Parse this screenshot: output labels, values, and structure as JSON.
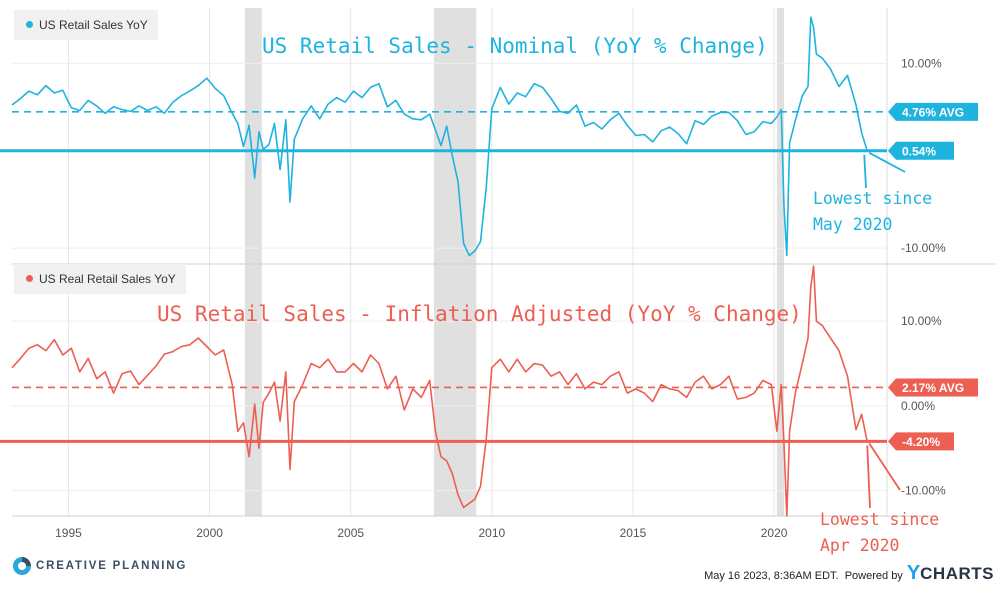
{
  "chart_data": [
    {
      "type": "line",
      "title": "US Retail Sales - Nominal (YoY % Change)",
      "legend": "US Retail Sales YoY",
      "color": "#1fb3df",
      "ylim": [
        -11.5,
        16
      ],
      "y_ticks": [
        {
          "value": 10,
          "label": "10.00%"
        },
        {
          "value": -10,
          "label": "-10.00%"
        }
      ],
      "avg": {
        "value": 4.76,
        "label": "4.76% AVG"
      },
      "current": {
        "value": 0.54,
        "label": "0.54%"
      },
      "note": [
        "Lowest since",
        "May 2020"
      ],
      "x": [
        1993.0,
        1993.3,
        1993.6,
        1993.9,
        1994.2,
        1994.5,
        1994.8,
        1995.1,
        1995.4,
        1995.7,
        1996.0,
        1996.3,
        1996.6,
        1996.9,
        1997.2,
        1997.5,
        1997.8,
        1998.1,
        1998.4,
        1998.7,
        1999.0,
        1999.3,
        1999.6,
        1999.9,
        2000.2,
        2000.5,
        2000.8,
        2001.0,
        2001.2,
        2001.4,
        2001.6,
        2001.75,
        2001.9,
        2002.1,
        2002.3,
        2002.5,
        2002.7,
        2002.85,
        2003.0,
        2003.3,
        2003.6,
        2003.9,
        2004.2,
        2004.5,
        2004.8,
        2005.1,
        2005.4,
        2005.7,
        2006.0,
        2006.3,
        2006.6,
        2006.9,
        2007.2,
        2007.5,
        2007.8,
        2008.0,
        2008.2,
        2008.4,
        2008.6,
        2008.8,
        2009.0,
        2009.2,
        2009.4,
        2009.6,
        2009.8,
        2010.0,
        2010.3,
        2010.6,
        2010.9,
        2011.2,
        2011.5,
        2011.8,
        2012.1,
        2012.4,
        2012.7,
        2013.0,
        2013.3,
        2013.6,
        2013.9,
        2014.2,
        2014.5,
        2014.8,
        2015.1,
        2015.4,
        2015.7,
        2016.0,
        2016.3,
        2016.6,
        2016.9,
        2017.2,
        2017.5,
        2017.8,
        2018.1,
        2018.4,
        2018.7,
        2019.0,
        2019.3,
        2019.6,
        2019.9,
        2020.1,
        2020.25,
        2020.35,
        2020.45,
        2020.55,
        2020.75,
        2021.0,
        2021.2,
        2021.3,
        2021.4,
        2021.5,
        2021.7,
        2022.0,
        2022.3,
        2022.6,
        2022.9,
        2023.1,
        2023.3
      ],
      "values": [
        5.5,
        6.2,
        7.0,
        6.6,
        7.6,
        6.8,
        7.1,
        5.2,
        4.9,
        6.0,
        5.4,
        4.6,
        5.3,
        5.0,
        4.8,
        5.4,
        4.9,
        5.3,
        4.6,
        5.8,
        6.5,
        7.0,
        7.6,
        8.4,
        7.3,
        6.5,
        4.6,
        3.5,
        1.0,
        3.3,
        -2.4,
        2.6,
        0.7,
        1.2,
        3.5,
        -1.5,
        3.9,
        -5.0,
        1.8,
        4.0,
        5.4,
        4.0,
        5.6,
        6.3,
        5.8,
        7.0,
        6.3,
        7.4,
        7.8,
        5.3,
        6.0,
        4.5,
        4.0,
        3.9,
        4.5,
        2.8,
        1.1,
        3.2,
        0.0,
        -2.8,
        -9.5,
        -10.8,
        -10.3,
        -9.3,
        -3.5,
        5.1,
        7.4,
        5.6,
        6.8,
        6.4,
        7.8,
        7.4,
        6.2,
        4.8,
        4.6,
        5.5,
        3.2,
        3.6,
        2.9,
        3.9,
        4.6,
        3.3,
        2.2,
        2.3,
        1.5,
        2.7,
        3.1,
        2.4,
        1.3,
        3.8,
        3.4,
        4.3,
        4.7,
        4.7,
        3.8,
        2.3,
        2.6,
        3.7,
        3.5,
        4.2,
        5.0,
        -5.5,
        -10.8,
        1.4,
        3.8,
        6.5,
        7.5,
        15.0,
        13.9,
        11.0,
        10.6,
        9.4,
        7.5,
        8.7,
        5.5,
        2.5,
        0.54
      ]
    },
    {
      "type": "line",
      "title": "US Retail Sales - Inflation Adjusted (YoY % Change)",
      "legend": "US Real Retail Sales YoY",
      "color": "#ec5f52",
      "ylim": [
        -13,
        16.5
      ],
      "y_ticks": [
        {
          "value": 10,
          "label": "10.00%"
        },
        {
          "value": 0,
          "label": "0.00%"
        },
        {
          "value": -10,
          "label": "-10.00%"
        }
      ],
      "avg": {
        "value": 2.17,
        "label": "2.17% AVG"
      },
      "current": {
        "value": -4.2,
        "label": "-4.20%"
      },
      "note": [
        "Lowest since",
        "Apr 2020"
      ],
      "x": [
        1993.0,
        1993.3,
        1993.6,
        1993.9,
        1994.2,
        1994.5,
        1994.8,
        1995.1,
        1995.4,
        1995.7,
        1996.0,
        1996.3,
        1996.6,
        1996.9,
        1997.2,
        1997.5,
        1997.8,
        1998.1,
        1998.4,
        1998.7,
        1999.0,
        1999.3,
        1999.6,
        1999.9,
        2000.2,
        2000.5,
        2000.8,
        2001.0,
        2001.2,
        2001.4,
        2001.6,
        2001.75,
        2001.9,
        2002.1,
        2002.3,
        2002.5,
        2002.7,
        2002.85,
        2003.0,
        2003.3,
        2003.6,
        2003.9,
        2004.2,
        2004.5,
        2004.8,
        2005.1,
        2005.4,
        2005.7,
        2006.0,
        2006.3,
        2006.6,
        2006.9,
        2007.2,
        2007.5,
        2007.8,
        2008.0,
        2008.2,
        2008.4,
        2008.6,
        2008.8,
        2009.0,
        2009.2,
        2009.4,
        2009.6,
        2009.8,
        2010.0,
        2010.3,
        2010.6,
        2010.9,
        2011.2,
        2011.5,
        2011.8,
        2012.1,
        2012.4,
        2012.7,
        2013.0,
        2013.3,
        2013.6,
        2013.9,
        2014.2,
        2014.5,
        2014.8,
        2015.1,
        2015.4,
        2015.7,
        2016.0,
        2016.3,
        2016.6,
        2016.9,
        2017.2,
        2017.5,
        2017.8,
        2018.1,
        2018.4,
        2018.7,
        2019.0,
        2019.3,
        2019.6,
        2019.9,
        2020.1,
        2020.25,
        2020.35,
        2020.45,
        2020.55,
        2020.75,
        2021.0,
        2021.2,
        2021.3,
        2021.4,
        2021.5,
        2021.7,
        2022.0,
        2022.3,
        2022.6,
        2022.9,
        2023.1,
        2023.3
      ],
      "values": [
        4.5,
        5.6,
        6.8,
        7.2,
        6.5,
        7.8,
        6.0,
        6.8,
        4.0,
        5.6,
        3.2,
        4.0,
        1.5,
        3.8,
        4.1,
        2.5,
        3.6,
        4.7,
        6.1,
        6.4,
        7.0,
        7.2,
        8.0,
        7.0,
        6.0,
        6.6,
        2.5,
        -3.0,
        -2.0,
        -6.0,
        0.2,
        -5.0,
        0.4,
        1.5,
        2.8,
        -1.8,
        4.0,
        -7.5,
        0.5,
        2.5,
        5.0,
        4.5,
        5.5,
        4.0,
        4.0,
        5.0,
        4.0,
        6.0,
        5.0,
        2.0,
        3.5,
        -0.5,
        2.0,
        1.0,
        3.0,
        -3.0,
        -6.0,
        -6.5,
        -8.0,
        -10.5,
        -12.0,
        -11.5,
        -11.0,
        -9.5,
        -4.0,
        4.5,
        5.5,
        4.0,
        5.5,
        4.0,
        5.0,
        4.8,
        3.5,
        4.0,
        2.5,
        3.8,
        2.0,
        2.8,
        2.5,
        3.5,
        4.0,
        1.5,
        2.0,
        1.5,
        0.5,
        2.5,
        2.0,
        1.8,
        1.0,
        2.8,
        3.5,
        2.0,
        2.5,
        3.5,
        0.8,
        1.0,
        1.5,
        3.0,
        2.5,
        -3.0,
        2.5,
        -4.5,
        -13.0,
        -3.0,
        1.5,
        5.0,
        8.0,
        14.0,
        16.5,
        10.0,
        9.5,
        8.0,
        6.5,
        3.5,
        -2.8,
        -1.0,
        -4.2
      ]
    }
  ],
  "x_axis": {
    "range": [
      1993.0,
      2024.0
    ],
    "ticks": [
      {
        "value": 1995,
        "label": "1995"
      },
      {
        "value": 2000,
        "label": "2000"
      },
      {
        "value": 2005,
        "label": "2005"
      },
      {
        "value": 2010,
        "label": "2010"
      },
      {
        "value": 2015,
        "label": "2015"
      },
      {
        "value": 2020,
        "label": "2020"
      }
    ]
  },
  "recessions": [
    [
      2001.25,
      2001.85
    ],
    [
      2007.95,
      2009.45
    ],
    [
      2020.1,
      2020.35
    ]
  ],
  "recession_color": "#e0e0e0",
  "footer": {
    "brand": "CREATIVE PLANNING",
    "timestamp": "May 16 2023, 8:36AM EDT.",
    "powered_by": "Powered by",
    "ycharts_y": "Y",
    "ycharts_rest": "CHARTS"
  }
}
